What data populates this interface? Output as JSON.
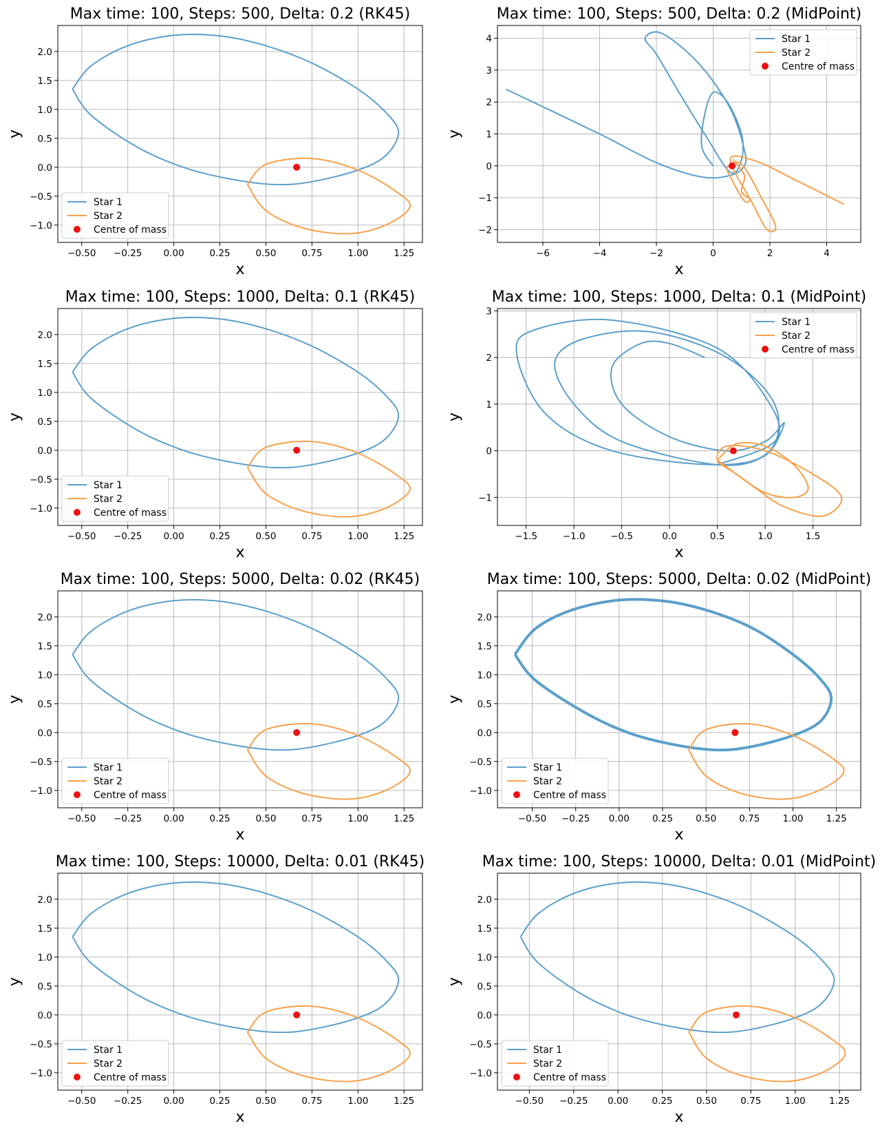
{
  "colors": {
    "star1": "#5b9fcb",
    "star2": "#f9a04a",
    "com": "#ee1111"
  },
  "legend_labels": [
    "Star 1",
    "Star 2",
    "Centre of mass"
  ],
  "xlabel": "x",
  "ylabel": "y",
  "chart_data": [
    {
      "type": "line",
      "title": "Max time: 100, Steps: 500, Delta: 0.2 (RK45)",
      "xlim": [
        -0.63,
        1.35
      ],
      "ylim": [
        -1.3,
        2.45
      ],
      "xticks": [
        -0.5,
        -0.25,
        0.0,
        0.25,
        0.5,
        0.75,
        1.0,
        1.25
      ],
      "xtick_labels": [
        "−0.50",
        "−0.25",
        "0.00",
        "0.25",
        "0.50",
        "0.75",
        "1.00",
        "1.25"
      ],
      "yticks": [
        -1.0,
        -0.5,
        0.0,
        0.5,
        1.0,
        1.5,
        2.0
      ],
      "ytick_labels": [
        "−1.0",
        "−0.5",
        "0.0",
        "0.5",
        "1.0",
        "1.5",
        "2.0"
      ],
      "legend_position": "lower-left",
      "centre_of_mass": [
        0.667,
        0.0
      ],
      "series": [
        {
          "name": "Star 1",
          "x": [
            -0.55,
            -0.45,
            -0.25,
            0.0,
            0.25,
            0.5,
            0.75,
            1.0,
            1.15,
            1.22,
            1.15,
            1.0,
            0.75,
            0.55,
            0.3,
            0.05,
            -0.2,
            -0.45,
            -0.55
          ],
          "y": [
            1.35,
            1.75,
            2.1,
            2.28,
            2.27,
            2.1,
            1.8,
            1.35,
            0.95,
            0.6,
            0.2,
            -0.05,
            -0.25,
            -0.3,
            -0.2,
            0.0,
            0.35,
            0.9,
            1.35
          ]
        },
        {
          "name": "Star 2",
          "x": [
            0.4,
            0.5,
            0.7,
            0.95,
            1.15,
            1.28,
            1.22,
            1.0,
            0.75,
            0.5,
            0.4
          ],
          "y": [
            -0.3,
            -0.75,
            -1.05,
            -1.15,
            -1.0,
            -0.7,
            -0.45,
            -0.05,
            0.15,
            0.05,
            -0.3
          ]
        }
      ]
    },
    {
      "type": "line",
      "title": "Max time: 100, Steps: 500, Delta: 0.2 (MidPoint)",
      "xlim": [
        -7.6,
        5.2
      ],
      "ylim": [
        -2.4,
        4.4
      ],
      "xticks": [
        -6,
        -4,
        -2,
        0,
        2,
        4
      ],
      "xtick_labels": [
        "−6",
        "−4",
        "−2",
        "0",
        "2",
        "4"
      ],
      "yticks": [
        -2,
        -1,
        0,
        1,
        2,
        3,
        4
      ],
      "ytick_labels": [
        "−2",
        "−1",
        "0",
        "1",
        "2",
        "3",
        "4"
      ],
      "legend_position": "top-right",
      "centre_of_mass": [
        0.667,
        0.0
      ],
      "series": [
        {
          "name": "Star 1",
          "x": [
            0.0,
            -0.4,
            -0.3,
            0.0,
            0.5,
            1.0,
            1.0,
            0.6,
            -0.3,
            -1.2,
            -2.0,
            -2.4,
            -1.8,
            -0.5,
            0.6,
            1.1,
            1.1,
            0.6,
            -0.4,
            -2.0,
            -4.0,
            -7.3
          ],
          "y": [
            0.0,
            0.6,
            1.6,
            2.3,
            2.0,
            1.0,
            0.2,
            -0.2,
            1.0,
            2.3,
            3.5,
            4.0,
            4.15,
            3.2,
            1.8,
            0.5,
            0.0,
            -0.3,
            -0.35,
            0.1,
            1.0,
            2.4
          ]
        },
        {
          "name": "Star 2",
          "x": [
            0.7,
            1.1,
            1.0,
            1.3,
            1.1,
            0.7,
            0.5,
            1.0,
            1.7,
            2.2,
            1.9,
            1.4,
            0.6,
            1.5,
            2.8,
            4.6
          ],
          "y": [
            0.2,
            -0.3,
            -0.8,
            -1.05,
            -1.1,
            -0.5,
            -0.05,
            0.05,
            -1.0,
            -1.9,
            -2.0,
            -1.2,
            0.2,
            0.15,
            -0.4,
            -1.2
          ]
        }
      ]
    },
    {
      "type": "line",
      "title": "Max time: 100, Steps: 1000, Delta: 0.1 (RK45)",
      "xlim": [
        -0.63,
        1.35
      ],
      "ylim": [
        -1.3,
        2.45
      ],
      "xticks": [
        -0.5,
        -0.25,
        0.0,
        0.25,
        0.5,
        0.75,
        1.0,
        1.25
      ],
      "xtick_labels": [
        "−0.50",
        "−0.25",
        "0.00",
        "0.25",
        "0.50",
        "0.75",
        "1.00",
        "1.25"
      ],
      "yticks": [
        -1.0,
        -0.5,
        0.0,
        0.5,
        1.0,
        1.5,
        2.0
      ],
      "ytick_labels": [
        "−1.0",
        "−0.5",
        "0.0",
        "0.5",
        "1.0",
        "1.5",
        "2.0"
      ],
      "legend_position": "lower-left",
      "centre_of_mass": [
        0.667,
        0.0
      ],
      "series": [
        {
          "name": "Star 1",
          "x": [
            -0.55,
            -0.45,
            -0.25,
            0.0,
            0.25,
            0.5,
            0.75,
            1.0,
            1.15,
            1.22,
            1.15,
            1.0,
            0.75,
            0.55,
            0.3,
            0.05,
            -0.2,
            -0.45,
            -0.55
          ],
          "y": [
            1.35,
            1.75,
            2.1,
            2.28,
            2.27,
            2.1,
            1.8,
            1.35,
            0.95,
            0.6,
            0.2,
            -0.05,
            -0.25,
            -0.3,
            -0.2,
            0.0,
            0.35,
            0.9,
            1.35
          ]
        },
        {
          "name": "Star 2",
          "x": [
            0.4,
            0.5,
            0.7,
            0.95,
            1.15,
            1.28,
            1.22,
            1.0,
            0.75,
            0.5,
            0.4
          ],
          "y": [
            -0.3,
            -0.75,
            -1.05,
            -1.15,
            -1.0,
            -0.7,
            -0.45,
            -0.05,
            0.15,
            0.05,
            -0.3
          ]
        }
      ]
    },
    {
      "type": "line",
      "title": "Max time: 100, Steps: 1000, Delta: 0.1 (MidPoint)",
      "xlim": [
        -1.8,
        2.0
      ],
      "ylim": [
        -1.6,
        3.05
      ],
      "xticks": [
        -1.5,
        -1.0,
        -0.5,
        0.0,
        0.5,
        1.0,
        1.5
      ],
      "xtick_labels": [
        "−1.5",
        "−1.0",
        "−0.5",
        "0.0",
        "0.5",
        "1.0",
        "1.5"
      ],
      "yticks": [
        -1,
        0,
        1,
        2,
        3
      ],
      "ytick_labels": [
        "−1",
        "0",
        "1",
        "2",
        "3"
      ],
      "legend_position": "top-right",
      "centre_of_mass": [
        0.667,
        0.0
      ],
      "series": [
        {
          "name": "Star 1",
          "x": [
            0.37,
            0.0,
            -0.3,
            -0.6,
            -0.5,
            0.0,
            0.6,
            1.0,
            1.2,
            1.0,
            0.5,
            -0.5,
            -1.0,
            -1.2,
            -0.9,
            -0.2,
            0.6,
            1.1,
            1.05,
            0.5,
            -0.6,
            -1.3,
            -1.6,
            -1.4,
            -0.6,
            0.5,
            1.05,
            1.1,
            0.5
          ],
          "y": [
            2.0,
            2.3,
            2.3,
            1.8,
            1.0,
            0.3,
            0.0,
            0.2,
            0.6,
            -0.1,
            -0.3,
            0.2,
            1.0,
            1.9,
            2.4,
            2.55,
            2.0,
            1.0,
            0.0,
            -0.3,
            0.0,
            0.8,
            2.1,
            2.6,
            2.8,
            2.2,
            1.0,
            0.2,
            -0.3
          ]
        },
        {
          "name": "Star 2",
          "x": [
            0.5,
            0.7,
            1.0,
            1.3,
            1.45,
            1.3,
            1.0,
            0.7,
            0.5,
            0.6,
            1.0,
            1.5,
            1.8,
            1.6,
            1.2,
            0.9,
            0.5
          ],
          "y": [
            -0.2,
            0.15,
            0.1,
            -0.3,
            -0.8,
            -1.0,
            -0.9,
            -0.5,
            -0.2,
            0.1,
            0.0,
            -0.5,
            -1.0,
            -1.4,
            -1.2,
            -0.8,
            -0.2
          ]
        }
      ]
    },
    {
      "type": "line",
      "title": "Max time: 100, Steps: 5000, Delta: 0.02 (RK45)",
      "xlim": [
        -0.63,
        1.35
      ],
      "ylim": [
        -1.3,
        2.45
      ],
      "xticks": [
        -0.5,
        -0.25,
        0.0,
        0.25,
        0.5,
        0.75,
        1.0,
        1.25
      ],
      "xtick_labels": [
        "−0.50",
        "−0.25",
        "0.00",
        "0.25",
        "0.50",
        "0.75",
        "1.00",
        "1.25"
      ],
      "yticks": [
        -1.0,
        -0.5,
        0.0,
        0.5,
        1.0,
        1.5,
        2.0
      ],
      "ytick_labels": [
        "−1.0",
        "−0.5",
        "0.0",
        "0.5",
        "1.0",
        "1.5",
        "2.0"
      ],
      "legend_position": "lower-left",
      "centre_of_mass": [
        0.667,
        0.0
      ],
      "series": [
        {
          "name": "Star 1",
          "x": [
            -0.55,
            -0.45,
            -0.25,
            0.0,
            0.25,
            0.5,
            0.75,
            1.0,
            1.15,
            1.22,
            1.15,
            1.0,
            0.75,
            0.55,
            0.3,
            0.05,
            -0.2,
            -0.45,
            -0.55
          ],
          "y": [
            1.35,
            1.75,
            2.1,
            2.28,
            2.27,
            2.1,
            1.8,
            1.35,
            0.95,
            0.6,
            0.2,
            -0.05,
            -0.25,
            -0.3,
            -0.2,
            0.0,
            0.35,
            0.9,
            1.35
          ]
        },
        {
          "name": "Star 2",
          "x": [
            0.4,
            0.5,
            0.7,
            0.95,
            1.15,
            1.28,
            1.22,
            1.0,
            0.75,
            0.5,
            0.4
          ],
          "y": [
            -0.3,
            -0.75,
            -1.05,
            -1.15,
            -1.0,
            -0.7,
            -0.45,
            -0.05,
            0.15,
            0.05,
            -0.3
          ]
        }
      ]
    },
    {
      "type": "line",
      "title": "Max time: 100, Steps: 5000, Delta: 0.02 (MidPoint)",
      "xlim": [
        -0.7,
        1.39
      ],
      "ylim": [
        -1.3,
        2.45
      ],
      "xticks": [
        -0.5,
        -0.25,
        0.0,
        0.25,
        0.5,
        0.75,
        1.0,
        1.25
      ],
      "xtick_labels": [
        "−0.50",
        "−0.25",
        "0.00",
        "0.25",
        "0.50",
        "0.75",
        "1.00",
        "1.25"
      ],
      "yticks": [
        -1.0,
        -0.5,
        0.0,
        0.5,
        1.0,
        1.5,
        2.0
      ],
      "ytick_labels": [
        "−1.0",
        "−0.5",
        "0.0",
        "0.5",
        "1.0",
        "1.5",
        "2.0"
      ],
      "legend_position": "lower-left",
      "centre_of_mass": [
        0.667,
        0.0
      ],
      "series": [
        {
          "name": "Star 1",
          "x": [
            -0.6,
            -0.48,
            -0.27,
            0.0,
            0.27,
            0.52,
            0.77,
            1.0,
            1.15,
            1.22,
            1.16,
            1.0,
            0.75,
            0.55,
            0.3,
            0.05,
            -0.2,
            -0.48,
            -0.6
          ],
          "y": [
            1.35,
            1.8,
            2.12,
            2.29,
            2.27,
            2.1,
            1.8,
            1.35,
            0.95,
            0.6,
            0.2,
            -0.05,
            -0.25,
            -0.3,
            -0.2,
            0.0,
            0.35,
            0.9,
            1.35
          ]
        },
        {
          "name": "Star 2",
          "x": [
            0.4,
            0.5,
            0.7,
            0.95,
            1.15,
            1.29,
            1.23,
            1.0,
            0.75,
            0.5,
            0.4
          ],
          "y": [
            -0.3,
            -0.75,
            -1.05,
            -1.15,
            -1.0,
            -0.7,
            -0.45,
            -0.05,
            0.15,
            0.05,
            -0.3
          ]
        }
      ]
    },
    {
      "type": "line",
      "title": "Max time: 100, Steps: 10000, Delta: 0.01 (RK45)",
      "xlim": [
        -0.63,
        1.35
      ],
      "ylim": [
        -1.3,
        2.45
      ],
      "xticks": [
        -0.5,
        -0.25,
        0.0,
        0.25,
        0.5,
        0.75,
        1.0,
        1.25
      ],
      "xtick_labels": [
        "−0.50",
        "−0.25",
        "0.00",
        "0.25",
        "0.50",
        "0.75",
        "1.00",
        "1.25"
      ],
      "yticks": [
        -1.0,
        -0.5,
        0.0,
        0.5,
        1.0,
        1.5,
        2.0
      ],
      "ytick_labels": [
        "−1.0",
        "−0.5",
        "0.0",
        "0.5",
        "1.0",
        "1.5",
        "2.0"
      ],
      "legend_position": "lower-left",
      "centre_of_mass": [
        0.667,
        0.0
      ],
      "series": [
        {
          "name": "Star 1",
          "x": [
            -0.55,
            -0.45,
            -0.25,
            0.0,
            0.25,
            0.5,
            0.75,
            1.0,
            1.15,
            1.22,
            1.15,
            1.0,
            0.75,
            0.55,
            0.3,
            0.05,
            -0.2,
            -0.45,
            -0.55
          ],
          "y": [
            1.35,
            1.75,
            2.1,
            2.28,
            2.27,
            2.1,
            1.8,
            1.35,
            0.95,
            0.6,
            0.2,
            -0.05,
            -0.25,
            -0.3,
            -0.2,
            0.0,
            0.35,
            0.9,
            1.35
          ]
        },
        {
          "name": "Star 2",
          "x": [
            0.4,
            0.5,
            0.7,
            0.95,
            1.15,
            1.28,
            1.22,
            1.0,
            0.75,
            0.5,
            0.4
          ],
          "y": [
            -0.3,
            -0.75,
            -1.05,
            -1.15,
            -1.0,
            -0.7,
            -0.45,
            -0.05,
            0.15,
            0.05,
            -0.3
          ]
        }
      ]
    },
    {
      "type": "line",
      "title": "Max time: 100, Steps: 10000, Delta: 0.01 (MidPoint)",
      "xlim": [
        -0.68,
        1.37
      ],
      "ylim": [
        -1.3,
        2.45
      ],
      "xticks": [
        -0.5,
        -0.25,
        0.0,
        0.25,
        0.5,
        0.75,
        1.0,
        1.25
      ],
      "xtick_labels": [
        "−0.50",
        "−0.25",
        "0.00",
        "0.25",
        "0.50",
        "0.75",
        "1.00",
        "1.25"
      ],
      "yticks": [
        -1.0,
        -0.5,
        0.0,
        0.5,
        1.0,
        1.5,
        2.0
      ],
      "ytick_labels": [
        "−1.0",
        "−0.5",
        "0.0",
        "0.5",
        "1.0",
        "1.5",
        "2.0"
      ],
      "legend_position": "lower-left",
      "centre_of_mass": [
        0.667,
        0.0
      ],
      "series": [
        {
          "name": "Star 1",
          "x": [
            -0.55,
            -0.45,
            -0.25,
            0.0,
            0.25,
            0.5,
            0.75,
            1.0,
            1.15,
            1.22,
            1.15,
            1.0,
            0.75,
            0.55,
            0.3,
            0.05,
            -0.2,
            -0.45,
            -0.55
          ],
          "y": [
            1.35,
            1.75,
            2.1,
            2.28,
            2.27,
            2.1,
            1.8,
            1.35,
            0.95,
            0.6,
            0.2,
            -0.05,
            -0.25,
            -0.3,
            -0.2,
            0.0,
            0.35,
            0.9,
            1.35
          ]
        },
        {
          "name": "Star 2",
          "x": [
            0.4,
            0.5,
            0.7,
            0.95,
            1.15,
            1.28,
            1.22,
            1.0,
            0.75,
            0.5,
            0.4
          ],
          "y": [
            -0.3,
            -0.75,
            -1.05,
            -1.15,
            -1.0,
            -0.7,
            -0.45,
            -0.05,
            0.15,
            0.05,
            -0.3
          ]
        }
      ]
    }
  ]
}
